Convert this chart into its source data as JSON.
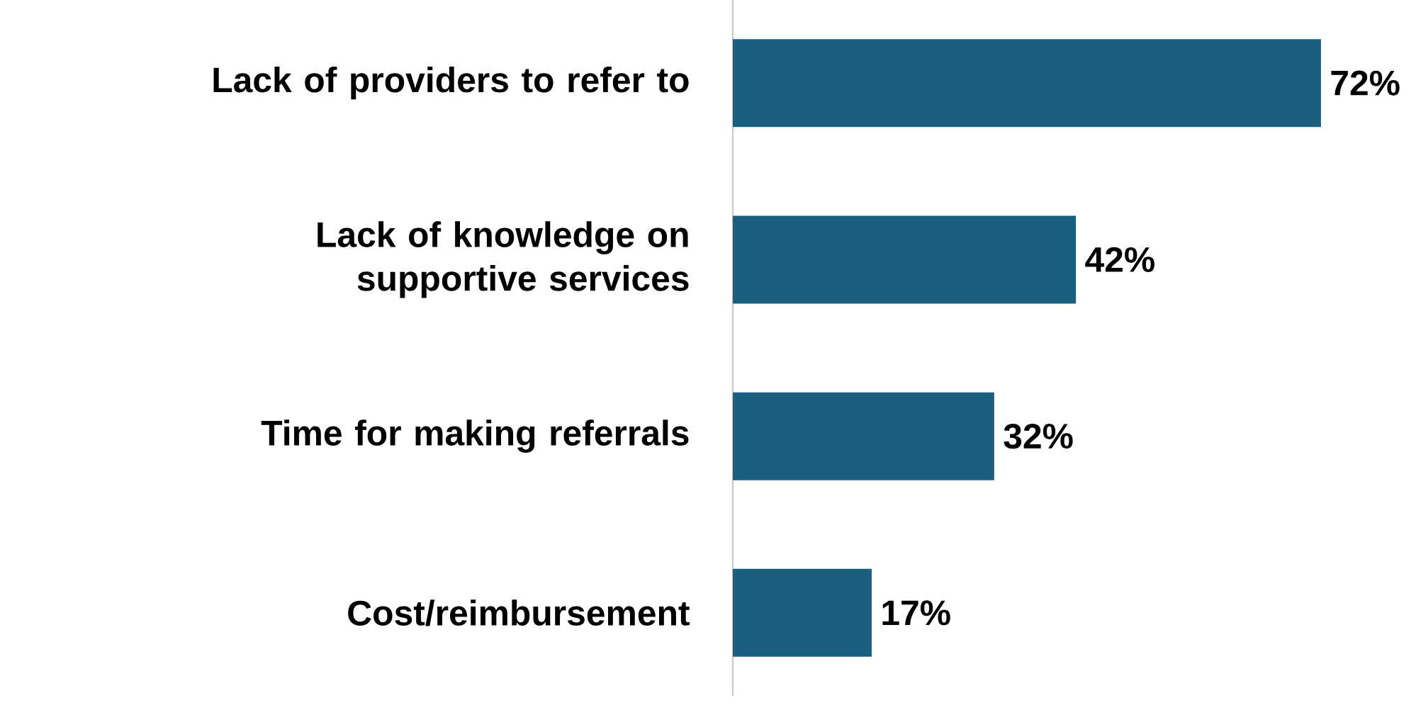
{
  "chart_data": {
    "type": "bar",
    "orientation": "horizontal",
    "categories": [
      "Lack of providers to refer to",
      "Lack of knowledge on supportive services",
      "Time for making referrals",
      "Cost/reimbursement"
    ],
    "values": [
      72,
      42,
      32,
      17
    ],
    "value_labels": [
      "72%",
      "42%",
      "32%",
      "17%"
    ],
    "color": "#1a5f80"
  }
}
